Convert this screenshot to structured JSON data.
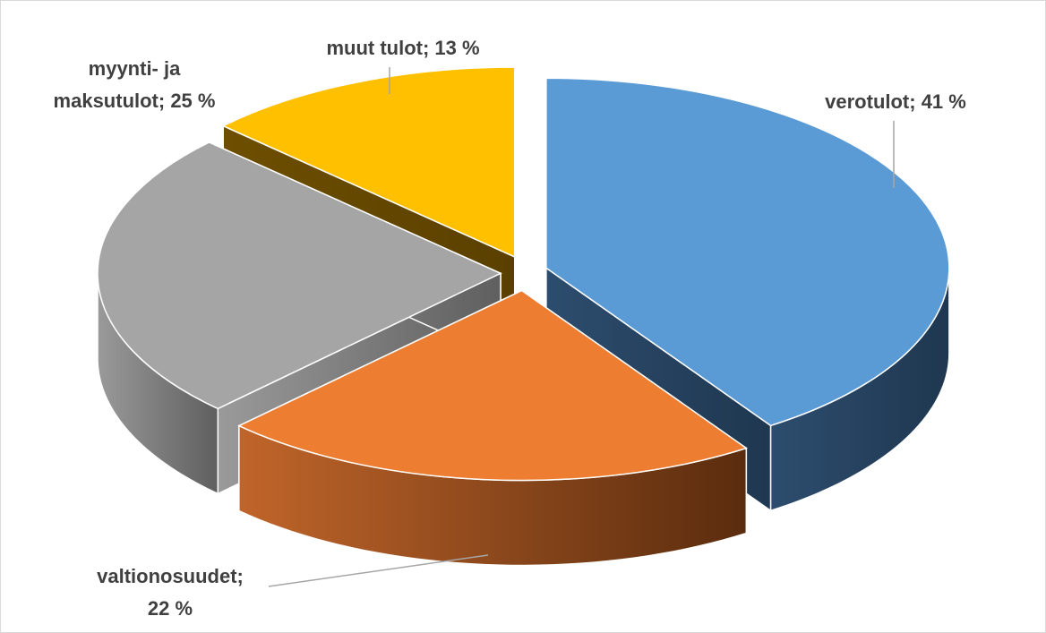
{
  "chart_data": {
    "type": "pie",
    "values": [
      41,
      22,
      25,
      13
    ],
    "value_labels": [
      "verotulot; 41 %",
      "valtionosuudet;\n22 %",
      "myynti- ja\nmaksutulot; 25 %",
      "muut tulot; 13 %"
    ],
    "colors": [
      "#5b9bd5",
      "#ed7d31",
      "#a5a5a5",
      "#ffc000"
    ]
  }
}
